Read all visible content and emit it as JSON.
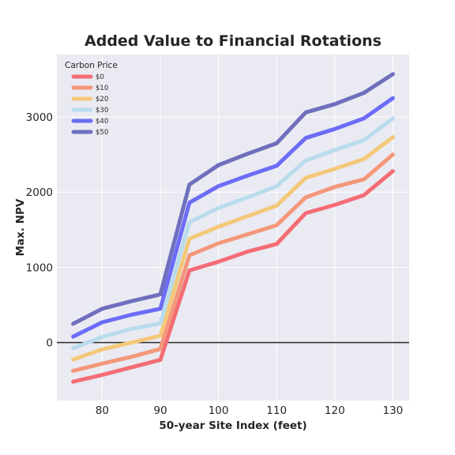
{
  "chart_data": {
    "type": "line",
    "title": "Added Value to Financial Rotations",
    "xlabel": "50-year Site Index (feet)",
    "ylabel": "Max. NPV",
    "xlim": [
      72.2,
      132.8
    ],
    "ylim": [
      -770,
      3830
    ],
    "xticks": [
      80,
      90,
      100,
      110,
      120,
      130
    ],
    "yticks": [
      0,
      1000,
      2000,
      3000
    ],
    "grid": true,
    "zero_line": true,
    "legend": {
      "title": "Carbon Price",
      "placement": "top-left"
    },
    "x": [
      75,
      80,
      85,
      90,
      95,
      100,
      105,
      110,
      115,
      120,
      125,
      130
    ],
    "series": [
      {
        "name": "$0",
        "color": "#f46d75",
        "values": [
          -520,
          -430,
          -330,
          -230,
          960,
          1075,
          1210,
          1310,
          1720,
          1830,
          1960,
          2280
        ]
      },
      {
        "name": "$10",
        "color": "#f4977a",
        "values": [
          -375,
          -280,
          -190,
          -85,
          1160,
          1320,
          1440,
          1560,
          1930,
          2070,
          2170,
          2500
        ]
      },
      {
        "name": "$20",
        "color": "#f4c87a",
        "values": [
          -225,
          -90,
          0,
          90,
          1380,
          1540,
          1680,
          1820,
          2190,
          2310,
          2440,
          2730
        ]
      },
      {
        "name": "$30",
        "color": "#b9dcec",
        "values": [
          -75,
          75,
          180,
          255,
          1600,
          1790,
          1930,
          2080,
          2420,
          2560,
          2690,
          2980
        ]
      },
      {
        "name": "$40",
        "color": "#6c6cf7",
        "values": [
          80,
          270,
          370,
          450,
          1860,
          2080,
          2220,
          2350,
          2720,
          2840,
          2980,
          3250
        ]
      },
      {
        "name": "$50",
        "color": "#6f6fbd",
        "values": [
          250,
          450,
          550,
          640,
          2100,
          2360,
          2510,
          2650,
          3060,
          3170,
          3320,
          3570
        ]
      }
    ]
  }
}
